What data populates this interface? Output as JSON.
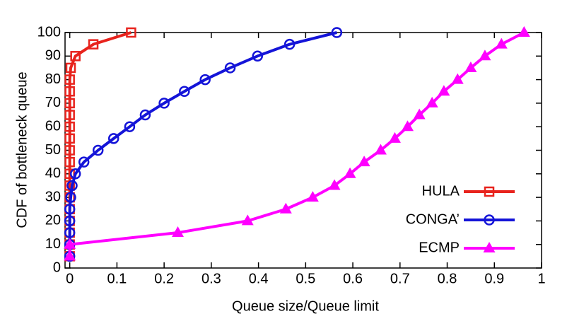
{
  "chart_data": {
    "type": "line",
    "xlabel": "Queue size/Queue limit",
    "ylabel": "CDF of bottleneck queue",
    "xlim": [
      -0.01,
      1
    ],
    "ylim": [
      0,
      100
    ],
    "xticks": [
      0,
      0.1,
      0.2,
      0.3,
      0.4,
      0.5,
      0.6,
      0.7,
      0.8,
      0.9,
      1
    ],
    "yticks": [
      0,
      10,
      20,
      30,
      40,
      50,
      60,
      70,
      80,
      90,
      100
    ],
    "legend": "lower right",
    "series": [
      {
        "name": "HULA",
        "color": "#e8231d",
        "marker": "square",
        "x": [
          0,
          0,
          0,
          0,
          0,
          0,
          0,
          0,
          0,
          0,
          0,
          0,
          0,
          0,
          0,
          0,
          0.002,
          0.012,
          0.05,
          0.13
        ],
        "values": [
          5,
          10,
          15,
          20,
          25,
          30,
          35,
          40,
          45,
          50,
          55,
          60,
          65,
          70,
          75,
          80,
          85,
          90,
          95,
          100
        ]
      },
      {
        "name": "CONGA’",
        "color": "#1414d8",
        "marker": "circle",
        "x": [
          0,
          0,
          0,
          0,
          0,
          0.002,
          0.005,
          0.012,
          0.03,
          0.06,
          0.093,
          0.127,
          0.16,
          0.2,
          0.243,
          0.287,
          0.34,
          0.398,
          0.466,
          0.566
        ],
        "values": [
          5,
          10,
          15,
          20,
          25,
          30,
          35,
          40,
          45,
          50,
          55,
          60,
          65,
          70,
          75,
          80,
          85,
          90,
          95,
          100
        ]
      },
      {
        "name": "ECMP",
        "color": "#ff00ff",
        "marker": "triangle",
        "x": [
          0,
          0,
          0.229,
          0.377,
          0.458,
          0.515,
          0.561,
          0.594,
          0.624,
          0.659,
          0.689,
          0.716,
          0.741,
          0.768,
          0.793,
          0.822,
          0.85,
          0.88,
          0.915,
          0.963
        ],
        "values": [
          5,
          10,
          15,
          20,
          25,
          30,
          35,
          40,
          45,
          50,
          55,
          60,
          65,
          70,
          75,
          80,
          85,
          90,
          95,
          100
        ]
      }
    ]
  }
}
